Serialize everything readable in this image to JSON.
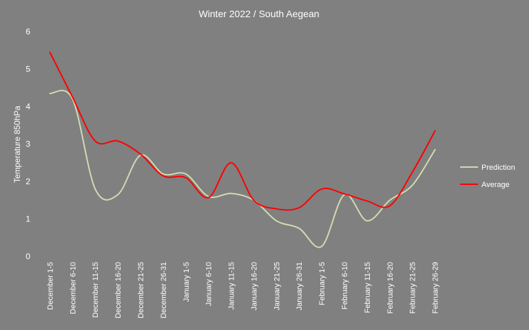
{
  "chart_data": {
    "type": "line",
    "title": "Winter 2022 / South Aegean",
    "xlabel": "",
    "ylabel": "Temperature 850hPa",
    "ylim": [
      0,
      6
    ],
    "yticks": [
      "0",
      "1",
      "2",
      "3",
      "4",
      "5",
      "6"
    ],
    "grid": false,
    "legend_position": "right",
    "categories": [
      "December 1-5",
      "December 6-10",
      "December 11-15",
      "December 16-20",
      "December 21-25",
      "December 26-31",
      "January 1-5",
      "January 6-10",
      "January 11-15",
      "January 16-20",
      "January 21-25",
      "January 26-31",
      "February 1-5",
      "February 6-10",
      "February 11-15",
      "February 16-20",
      "February 21-25",
      "February 26-29"
    ],
    "series": [
      {
        "name": "Prediction",
        "color": "#d0dbb0",
        "values": [
          4.35,
          4.2,
          1.8,
          1.65,
          2.7,
          2.2,
          2.2,
          1.6,
          1.68,
          1.5,
          0.95,
          0.75,
          0.27,
          1.65,
          0.95,
          1.5,
          1.9,
          2.85
        ]
      },
      {
        "name": "Average",
        "color": "#ff0000",
        "values": [
          5.45,
          4.25,
          3.08,
          3.08,
          2.73,
          2.15,
          2.1,
          1.57,
          2.5,
          1.5,
          1.27,
          1.3,
          1.8,
          1.67,
          1.48,
          1.35,
          2.25,
          3.35
        ]
      }
    ]
  }
}
